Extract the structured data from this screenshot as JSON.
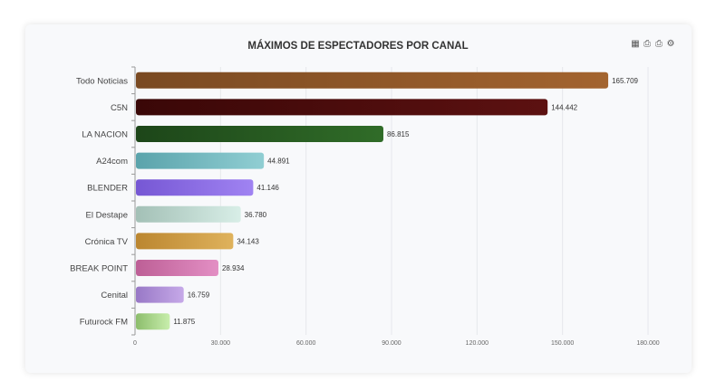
{
  "chart_data": {
    "type": "bar",
    "orientation": "horizontal",
    "title": "MÁXIMOS DE ESPECTADORES POR CANAL",
    "categories": [
      "Todo Noticias",
      "C5N",
      "LA NACION",
      "A24com",
      "BLENDER",
      "El Destape",
      "Crónica TV",
      "BREAK POINT",
      "Cenital",
      "Futurock FM"
    ],
    "values": [
      165709,
      144442,
      86815,
      44891,
      41146,
      36780,
      34143,
      28934,
      16759,
      11875
    ],
    "data_labels": [
      "165.709",
      "144.442",
      "86.815",
      "44.891",
      "41.146",
      "36.780",
      "34.143",
      "28.934",
      "16.759",
      "11.875"
    ],
    "xlim": [
      0,
      180000
    ],
    "x_ticks": [
      0,
      30000,
      60000,
      90000,
      120000,
      150000,
      180000
    ],
    "x_tick_labels": [
      "0",
      "30.000",
      "60.000",
      "90.000",
      "120.000",
      "150.000",
      "180.000"
    ],
    "grid": true,
    "colors": [
      [
        "#7a4a22",
        "#a3642f"
      ],
      [
        "#3a0707",
        "#5c1111"
      ],
      [
        "#1d4619",
        "#306c28"
      ],
      [
        "#5aa3ab",
        "#90ced3"
      ],
      [
        "#7657d4",
        "#a083f2"
      ],
      [
        "#a3c0b6",
        "#d8eee7"
      ],
      [
        "#bb8630",
        "#dfb25c"
      ],
      [
        "#bd5f96",
        "#e38fc4"
      ],
      [
        "#9878c6",
        "#c6a9e8"
      ],
      [
        "#8cbd6c",
        "#c8eeac"
      ]
    ]
  },
  "toolbar": {
    "icons": [
      "table-icon",
      "print-icon",
      "print-icon",
      "gear-icon"
    ],
    "glyphs": [
      "▦",
      "⎙",
      "⎙",
      "⚙"
    ]
  }
}
